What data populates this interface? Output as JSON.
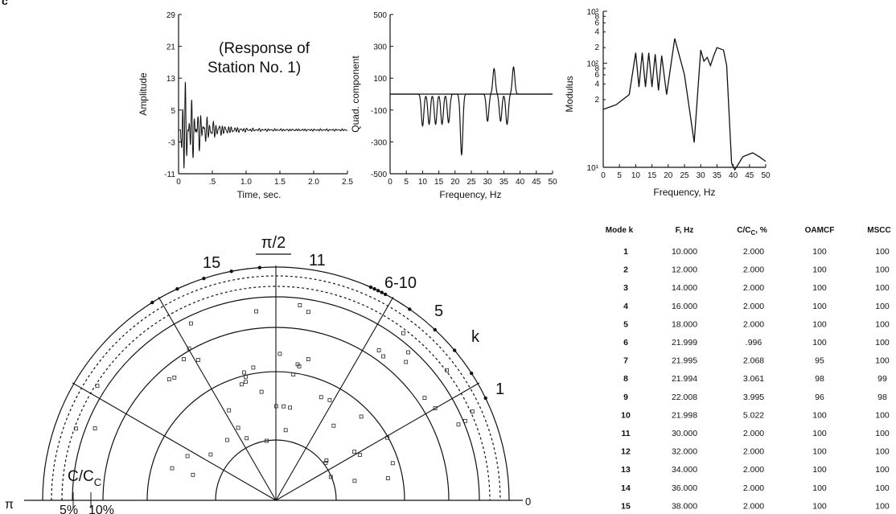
{
  "panel_letter": "c",
  "chart_data": [
    {
      "type": "line",
      "panel": "time-history",
      "annotation_line1": "(Response of",
      "annotation_line2": "Station No. 1)",
      "xlabel": "Time, sec.",
      "ylabel": "Amplitude",
      "xlim": [
        0,
        2.5
      ],
      "ylim": [
        -11,
        29
      ],
      "x_ticks": [
        "0",
        ".5",
        "1.0",
        "1.5",
        "2.0",
        "2.5"
      ],
      "x_tick_values": [
        0,
        0.5,
        1.0,
        1.5,
        2.0,
        2.5
      ],
      "y_ticks": [
        "29",
        "21",
        "13",
        "5",
        "-3",
        "-11"
      ],
      "y_tick_values": [
        29,
        21,
        13,
        5,
        -3,
        -11
      ]
    },
    {
      "type": "line",
      "panel": "quadrature",
      "xlabel": "Frequency, Hz",
      "ylabel": "Quad. component",
      "xlim": [
        0,
        50
      ],
      "ylim": [
        -500,
        500
      ],
      "x_ticks": [
        "0",
        "5",
        "10",
        "15",
        "20",
        "25",
        "30",
        "35",
        "40",
        "45",
        "50"
      ],
      "x_tick_values": [
        0,
        5,
        10,
        15,
        20,
        25,
        30,
        35,
        40,
        45,
        50
      ],
      "y_ticks": [
        "500",
        "300",
        "100",
        "-100",
        "-300",
        "-500"
      ],
      "y_tick_values": [
        500,
        300,
        100,
        -100,
        -300,
        -500
      ],
      "peaks": [
        {
          "f": 10,
          "v": -200
        },
        {
          "f": 12,
          "v": -190
        },
        {
          "f": 14,
          "v": -190
        },
        {
          "f": 16,
          "v": -190
        },
        {
          "f": 18,
          "v": -180
        },
        {
          "f": 22,
          "v": -380
        },
        {
          "f": 30,
          "v": -170
        },
        {
          "f": 32,
          "v": 160
        },
        {
          "f": 34,
          "v": -170
        },
        {
          "f": 36,
          "v": -190
        },
        {
          "f": 38,
          "v": 170
        }
      ]
    },
    {
      "type": "line",
      "panel": "modulus",
      "xlabel": "Frequency, Hz",
      "ylabel": "Modulus",
      "scale": "log",
      "xlim": [
        0,
        50
      ],
      "ylim": [
        1000,
        1000000
      ],
      "x_ticks": [
        "0",
        "5",
        "10",
        "15",
        "20",
        "25",
        "30",
        "35",
        "40",
        "45",
        "50"
      ],
      "x_tick_values": [
        0,
        5,
        10,
        15,
        20,
        25,
        30,
        35,
        40,
        45,
        50
      ],
      "y_major_ticks": [
        "10³",
        "10²",
        "10¹"
      ],
      "y_minor_ticks": [
        "8",
        "6",
        "4",
        "2",
        "8",
        "6",
        "4",
        "2"
      ],
      "curve": [
        [
          0,
          13000
        ],
        [
          4,
          16000
        ],
        [
          8,
          25000
        ],
        [
          10,
          160000
        ],
        [
          11,
          35000
        ],
        [
          12,
          160000
        ],
        [
          13,
          35000
        ],
        [
          14,
          160000
        ],
        [
          15,
          35000
        ],
        [
          16,
          150000
        ],
        [
          17,
          30000
        ],
        [
          18,
          140000
        ],
        [
          19.5,
          25000
        ],
        [
          22,
          300000
        ],
        [
          25,
          60000
        ],
        [
          28,
          3000
        ],
        [
          30,
          180000
        ],
        [
          31,
          110000
        ],
        [
          32,
          130000
        ],
        [
          33,
          90000
        ],
        [
          34,
          140000
        ],
        [
          35,
          200000
        ],
        [
          37,
          180000
        ],
        [
          38,
          90000
        ],
        [
          39.5,
          1200
        ],
        [
          40.5,
          900
        ],
        [
          43,
          1600
        ],
        [
          46,
          1900
        ],
        [
          48,
          1600
        ],
        [
          50,
          1300
        ]
      ]
    },
    {
      "type": "scatter",
      "panel": "polar",
      "label_top": "π/2",
      "label_left": "π",
      "label_right": "0",
      "damping_label": "C/C",
      "damping_label_sub": "C",
      "ring_labels": [
        "5%",
        "10%"
      ],
      "mode_labels": [
        "15",
        "11",
        "6-10",
        "5",
        "k",
        "1"
      ],
      "modes_k": [
        1,
        2,
        3,
        4,
        5,
        6,
        7,
        8,
        9,
        10,
        11,
        12,
        13,
        14,
        15
      ],
      "points_deg": [
        26,
        33,
        40,
        47,
        55,
        62,
        63,
        64,
        65,
        66,
        94,
        101,
        108,
        115,
        122
      ]
    },
    {
      "type": "table",
      "columns": [
        "Mode k",
        "F, Hz",
        "C/C",
        "OAMCF",
        "MSCC"
      ],
      "column_suffix": {
        "C/C": {
          "sub": "C",
          "suffix": ", %"
        }
      },
      "rows": [
        [
          "1",
          "10.000",
          "2.000",
          "100",
          "100"
        ],
        [
          "2",
          "12.000",
          "2.000",
          "100",
          "100"
        ],
        [
          "3",
          "14.000",
          "2.000",
          "100",
          "100"
        ],
        [
          "4",
          "16.000",
          "2.000",
          "100",
          "100"
        ],
        [
          "5",
          "18.000",
          "2.000",
          "100",
          "100"
        ],
        [
          "6",
          "21.999",
          ".996",
          "100",
          "100"
        ],
        [
          "7",
          "21.995",
          "2.068",
          "95",
          "100"
        ],
        [
          "8",
          "21.994",
          "3.061",
          "98",
          "99"
        ],
        [
          "9",
          "22.008",
          "3.995",
          "96",
          "98"
        ],
        [
          "10",
          "21.998",
          "5.022",
          "100",
          "100"
        ],
        [
          "11",
          "30.000",
          "2.000",
          "100",
          "100"
        ],
        [
          "12",
          "32.000",
          "2.000",
          "100",
          "100"
        ],
        [
          "13",
          "34.000",
          "2.000",
          "100",
          "100"
        ],
        [
          "14",
          "36.000",
          "2.000",
          "100",
          "100"
        ],
        [
          "15",
          "38.000",
          "2.000",
          "100",
          "100"
        ]
      ]
    }
  ]
}
